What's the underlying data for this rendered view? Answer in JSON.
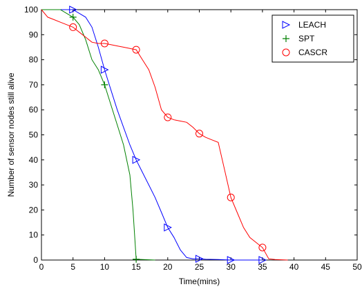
{
  "chart_data": {
    "type": "line",
    "title": "",
    "xlabel": "Time(mins)",
    "ylabel": "Number of sensor nodes still alive",
    "xlim": [
      0,
      50
    ],
    "ylim": [
      0,
      100
    ],
    "xticks": [
      "0",
      "5",
      "10",
      "15",
      "20",
      "25",
      "30",
      "35",
      "40",
      "45",
      "50"
    ],
    "yticks": [
      "0",
      "10",
      "20",
      "30",
      "40",
      "50",
      "60",
      "70",
      "80",
      "90",
      "100"
    ],
    "grid": false,
    "legend_position": "top-right",
    "series": [
      {
        "name": "LEACH",
        "color": "#0000ff",
        "marker": "triangle-right",
        "x": [
          0,
          5,
          7,
          8,
          9,
          10,
          11,
          12,
          13,
          14,
          15,
          16,
          17,
          18,
          19,
          20,
          21,
          22,
          23,
          24,
          25,
          26,
          28,
          30,
          32,
          35
        ],
        "y": [
          100,
          100,
          97,
          93,
          85,
          76,
          68,
          60,
          53,
          46,
          40,
          35,
          30,
          25,
          19,
          13,
          9,
          4,
          1,
          0.5,
          0.5,
          0.3,
          0.2,
          0,
          0,
          0
        ],
        "marker_x": [
          5,
          10,
          15,
          20,
          25,
          30,
          35
        ],
        "marker_y": [
          100,
          76,
          40,
          13,
          0.5,
          0,
          0
        ]
      },
      {
        "name": "SPT",
        "color": "#008000",
        "marker": "plus",
        "x": [
          0,
          3,
          5,
          6,
          7,
          8,
          9,
          10,
          11,
          12,
          13,
          14,
          14.5,
          15,
          16,
          17,
          18
        ],
        "y": [
          100,
          100,
          97,
          94,
          88,
          80,
          76,
          70,
          62,
          54,
          46,
          34,
          20,
          0.3,
          0.2,
          0.1,
          0
        ],
        "marker_x": [
          5,
          10,
          15
        ],
        "marker_y": [
          97,
          70,
          0.3
        ]
      },
      {
        "name": "CASCR",
        "color": "#ff0000",
        "marker": "circle",
        "x": [
          0,
          1,
          2,
          3,
          4,
          5,
          6,
          7,
          8,
          9,
          10,
          11,
          12,
          13,
          14,
          15,
          16,
          17,
          18,
          19,
          20,
          21,
          22,
          23,
          24,
          25,
          26,
          27,
          28,
          29,
          30,
          31,
          32,
          33,
          34,
          35,
          36,
          37,
          38,
          39
        ],
        "y": [
          100,
          97,
          96,
          95,
          94,
          93,
          91,
          89,
          87,
          86.5,
          86.5,
          86,
          85.5,
          85,
          84.5,
          84,
          80,
          76,
          69,
          60,
          57,
          56,
          55.5,
          55,
          53,
          50.5,
          49,
          48,
          47,
          36,
          25,
          19,
          13,
          9,
          7,
          5,
          0.5,
          0.2,
          0.1,
          0
        ],
        "marker_x": [
          5,
          10,
          15,
          20,
          25,
          30,
          35
        ],
        "marker_y": [
          93,
          86.5,
          84,
          57,
          50.5,
          25,
          5
        ]
      }
    ]
  }
}
